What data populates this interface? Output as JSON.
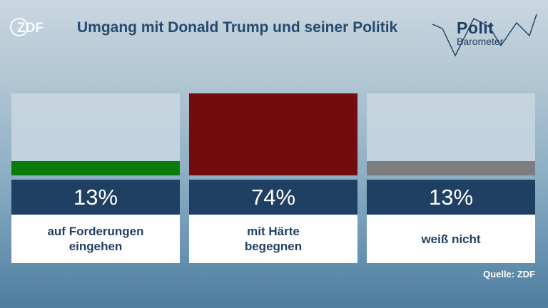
{
  "title": "Umgang mit Donald Trump und seiner Politik",
  "broadcaster_logo": "ZDF",
  "brand": {
    "line1": "Polit",
    "line2": "Barometer"
  },
  "source": "Quelle: ZDF",
  "colors": {
    "green": "#0a7a0a",
    "red": "#730c0e",
    "gray": "#7d7d7d",
    "navy": "#1f3f63"
  },
  "chart_data": {
    "type": "bar",
    "title": "Umgang mit Donald Trump und seiner Politik",
    "categories": [
      "auf Forderungen eingehen",
      "mit Härte begegnen",
      "weiß nicht"
    ],
    "values": [
      13,
      74,
      13
    ],
    "value_labels": [
      "13%",
      "74%",
      "13%"
    ],
    "colors": [
      "#0a7a0a",
      "#730c0e",
      "#7d7d7d"
    ],
    "ylim": [
      0,
      74
    ],
    "unit": "%"
  }
}
